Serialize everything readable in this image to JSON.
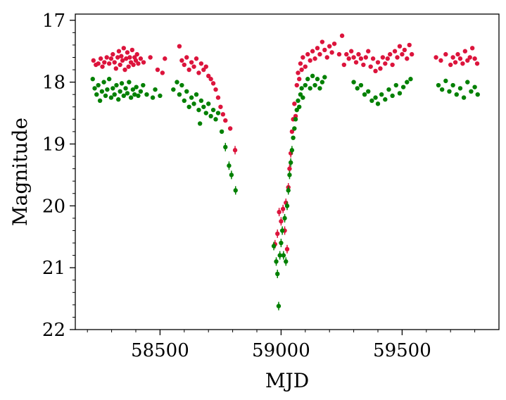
{
  "chart_data": {
    "type": "scatter",
    "xlabel": "MJD",
    "ylabel": "Magnitude",
    "xlim": [
      58150,
      59900
    ],
    "ylim": [
      22,
      16.9
    ],
    "y_inverted": true,
    "grid": false,
    "x_ticks": [
      58500,
      59000,
      59500
    ],
    "x_tick_labels": [
      "58500",
      "59000",
      "59500"
    ],
    "y_ticks": [
      17,
      18,
      19,
      20,
      21,
      22
    ],
    "y_tick_labels": [
      "17",
      "18",
      "19",
      "20",
      "21",
      "22"
    ],
    "series": [
      {
        "color": "#dc143c",
        "points": [
          [
            58225,
            17.65
          ],
          [
            58235,
            17.72
          ],
          [
            58245,
            17.7
          ],
          [
            58255,
            17.62
          ],
          [
            58262,
            17.75
          ],
          [
            58270,
            17.68
          ],
          [
            58280,
            17.6
          ],
          [
            58290,
            17.7
          ],
          [
            58298,
            17.62
          ],
          [
            58305,
            17.55
          ],
          [
            58312,
            17.68
          ],
          [
            58318,
            17.78
          ],
          [
            58325,
            17.6
          ],
          [
            58330,
            17.5
          ],
          [
            58335,
            17.72
          ],
          [
            58340,
            17.58
          ],
          [
            58345,
            17.65
          ],
          [
            58350,
            17.45
          ],
          [
            58355,
            17.8
          ],
          [
            58360,
            17.62
          ],
          [
            58365,
            17.52
          ],
          [
            58370,
            17.75
          ],
          [
            58375,
            17.6
          ],
          [
            58380,
            17.68
          ],
          [
            58385,
            17.48
          ],
          [
            58390,
            17.72
          ],
          [
            58395,
            17.6
          ],
          [
            58400,
            17.65
          ],
          [
            58405,
            17.55
          ],
          [
            58410,
            17.7
          ],
          [
            58420,
            17.62
          ],
          [
            58432,
            17.68
          ],
          [
            58460,
            17.6
          ],
          [
            58490,
            17.8
          ],
          [
            58510,
            17.85
          ],
          [
            58520,
            17.62
          ],
          [
            58580,
            17.42
          ],
          [
            58590,
            17.65
          ],
          [
            58600,
            17.72
          ],
          [
            58610,
            17.6
          ],
          [
            58620,
            17.8
          ],
          [
            58630,
            17.68
          ],
          [
            58640,
            17.75
          ],
          [
            58650,
            17.62
          ],
          [
            58660,
            17.85
          ],
          [
            58670,
            17.7
          ],
          [
            58680,
            17.8
          ],
          [
            58690,
            17.75
          ],
          [
            58700,
            17.9
          ],
          [
            58710,
            17.95
          ],
          [
            58720,
            18.02
          ],
          [
            58730,
            18.12
          ],
          [
            58740,
            18.25
          ],
          [
            58750,
            18.4
          ],
          [
            58760,
            18.52
          ],
          [
            58770,
            18.62
          ],
          [
            58790,
            18.75
          ],
          [
            58810,
            19.1
          ],
          [
            58975,
            20.62
          ],
          [
            58985,
            20.45
          ],
          [
            58992,
            20.1
          ],
          [
            59000,
            20.25
          ],
          [
            59008,
            20.05
          ],
          [
            59015,
            20.4
          ],
          [
            59020,
            19.95
          ],
          [
            59025,
            20.7
          ],
          [
            59030,
            19.7
          ],
          [
            59035,
            19.4
          ],
          [
            59040,
            19.15
          ],
          [
            59045,
            18.8
          ],
          [
            59050,
            18.6
          ],
          [
            59055,
            18.35
          ],
          [
            59060,
            18.55
          ],
          [
            59065,
            18.05
          ],
          [
            59070,
            17.85
          ],
          [
            59075,
            17.95
          ],
          [
            59080,
            17.7
          ],
          [
            59085,
            17.8
          ],
          [
            59090,
            17.6
          ],
          [
            59100,
            17.75
          ],
          [
            59110,
            17.55
          ],
          [
            59120,
            17.65
          ],
          [
            59130,
            17.5
          ],
          [
            59140,
            17.62
          ],
          [
            59150,
            17.45
          ],
          [
            59160,
            17.55
          ],
          [
            59170,
            17.35
          ],
          [
            59180,
            17.48
          ],
          [
            59190,
            17.6
          ],
          [
            59200,
            17.42
          ],
          [
            59210,
            17.52
          ],
          [
            59220,
            17.38
          ],
          [
            59240,
            17.55
          ],
          [
            59252,
            17.25
          ],
          [
            59260,
            17.72
          ],
          [
            59270,
            17.55
          ],
          [
            59280,
            17.62
          ],
          [
            59290,
            17.5
          ],
          [
            59300,
            17.6
          ],
          [
            59310,
            17.68
          ],
          [
            59320,
            17.55
          ],
          [
            59330,
            17.62
          ],
          [
            59340,
            17.72
          ],
          [
            59350,
            17.6
          ],
          [
            59360,
            17.5
          ],
          [
            59370,
            17.75
          ],
          [
            59380,
            17.62
          ],
          [
            59390,
            17.82
          ],
          [
            59400,
            17.68
          ],
          [
            59410,
            17.78
          ],
          [
            59420,
            17.6
          ],
          [
            59430,
            17.7
          ],
          [
            59440,
            17.62
          ],
          [
            59450,
            17.55
          ],
          [
            59460,
            17.72
          ],
          [
            59470,
            17.5
          ],
          [
            59480,
            17.6
          ],
          [
            59490,
            17.42
          ],
          [
            59500,
            17.55
          ],
          [
            59510,
            17.48
          ],
          [
            59520,
            17.62
          ],
          [
            59530,
            17.4
          ],
          [
            59540,
            17.55
          ],
          [
            59640,
            17.6
          ],
          [
            59660,
            17.65
          ],
          [
            59680,
            17.55
          ],
          [
            59700,
            17.72
          ],
          [
            59710,
            17.6
          ],
          [
            59720,
            17.68
          ],
          [
            59730,
            17.55
          ],
          [
            59740,
            17.62
          ],
          [
            59750,
            17.7
          ],
          [
            59760,
            17.5
          ],
          [
            59770,
            17.65
          ],
          [
            59780,
            17.6
          ],
          [
            59790,
            17.45
          ],
          [
            59800,
            17.62
          ],
          [
            59810,
            17.7
          ]
        ]
      },
      {
        "color": "#008000",
        "points": [
          [
            58222,
            17.95
          ],
          [
            58230,
            18.1
          ],
          [
            58238,
            18.2
          ],
          [
            58245,
            18.05
          ],
          [
            58252,
            18.3
          ],
          [
            58260,
            18.15
          ],
          [
            58268,
            18.0
          ],
          [
            58275,
            18.22
          ],
          [
            58282,
            18.12
          ],
          [
            58290,
            17.95
          ],
          [
            58298,
            18.25
          ],
          [
            58305,
            18.1
          ],
          [
            58312,
            18.2
          ],
          [
            58320,
            18.05
          ],
          [
            58328,
            18.28
          ],
          [
            58335,
            18.15
          ],
          [
            58342,
            18.02
          ],
          [
            58350,
            18.22
          ],
          [
            58358,
            18.1
          ],
          [
            58365,
            18.18
          ],
          [
            58372,
            18.0
          ],
          [
            58380,
            18.25
          ],
          [
            58388,
            18.12
          ],
          [
            58395,
            18.2
          ],
          [
            58402,
            18.08
          ],
          [
            58410,
            18.22
          ],
          [
            58420,
            18.15
          ],
          [
            58430,
            18.05
          ],
          [
            58445,
            18.2
          ],
          [
            58470,
            18.25
          ],
          [
            58480,
            18.12
          ],
          [
            58500,
            18.22
          ],
          [
            58555,
            18.12
          ],
          [
            58570,
            18.0
          ],
          [
            58580,
            18.2
          ],
          [
            58590,
            18.05
          ],
          [
            58600,
            18.3
          ],
          [
            58610,
            18.15
          ],
          [
            58620,
            18.4
          ],
          [
            58630,
            18.25
          ],
          [
            58640,
            18.35
          ],
          [
            58650,
            18.2
          ],
          [
            58660,
            18.45
          ],
          [
            58665,
            18.67
          ],
          [
            58670,
            18.3
          ],
          [
            58680,
            18.4
          ],
          [
            58690,
            18.5
          ],
          [
            58700,
            18.35
          ],
          [
            58710,
            18.55
          ],
          [
            58720,
            18.45
          ],
          [
            58730,
            18.6
          ],
          [
            58740,
            18.5
          ],
          [
            58755,
            18.8
          ],
          [
            58770,
            19.05
          ],
          [
            58785,
            19.35
          ],
          [
            58795,
            19.5
          ],
          [
            58812,
            19.75
          ],
          [
            58970,
            20.65
          ],
          [
            58980,
            20.9
          ],
          [
            58985,
            21.1
          ],
          [
            58990,
            21.62
          ],
          [
            58995,
            20.8
          ],
          [
            59000,
            20.6
          ],
          [
            59005,
            20.4
          ],
          [
            59010,
            20.8
          ],
          [
            59015,
            20.2
          ],
          [
            59020,
            20.9
          ],
          [
            59025,
            20.0
          ],
          [
            59030,
            19.75
          ],
          [
            59035,
            19.5
          ],
          [
            59040,
            19.3
          ],
          [
            59045,
            19.1
          ],
          [
            59050,
            18.9
          ],
          [
            59055,
            18.75
          ],
          [
            59060,
            18.6
          ],
          [
            59065,
            18.45
          ],
          [
            59070,
            18.3
          ],
          [
            59075,
            18.4
          ],
          [
            59080,
            18.2
          ],
          [
            59085,
            18.1
          ],
          [
            59090,
            18.25
          ],
          [
            59100,
            18.05
          ],
          [
            59110,
            17.95
          ],
          [
            59120,
            18.1
          ],
          [
            59130,
            17.9
          ],
          [
            59140,
            18.05
          ],
          [
            59150,
            17.95
          ],
          [
            59160,
            18.1
          ],
          [
            59170,
            18.0
          ],
          [
            59180,
            17.92
          ],
          [
            59300,
            18.0
          ],
          [
            59315,
            18.1
          ],
          [
            59330,
            18.05
          ],
          [
            59345,
            18.2
          ],
          [
            59360,
            18.15
          ],
          [
            59375,
            18.3
          ],
          [
            59390,
            18.25
          ],
          [
            59400,
            18.35
          ],
          [
            59415,
            18.2
          ],
          [
            59430,
            18.28
          ],
          [
            59445,
            18.12
          ],
          [
            59460,
            18.22
          ],
          [
            59475,
            18.05
          ],
          [
            59490,
            18.18
          ],
          [
            59505,
            18.08
          ],
          [
            59520,
            18.0
          ],
          [
            59535,
            17.95
          ],
          [
            59650,
            18.05
          ],
          [
            59665,
            18.12
          ],
          [
            59680,
            17.98
          ],
          [
            59695,
            18.15
          ],
          [
            59710,
            18.05
          ],
          [
            59725,
            18.2
          ],
          [
            59740,
            18.1
          ],
          [
            59755,
            18.25
          ],
          [
            59770,
            18.0
          ],
          [
            59785,
            18.15
          ],
          [
            59800,
            18.08
          ],
          [
            59812,
            18.2
          ]
        ]
      }
    ]
  }
}
